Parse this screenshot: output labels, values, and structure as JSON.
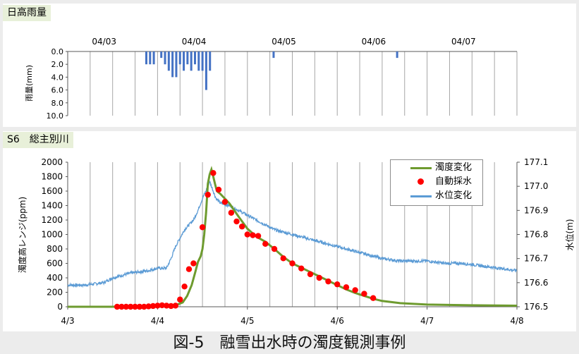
{
  "panels": {
    "top_label": "日高雨量",
    "bottom_label": "S6　総主別川"
  },
  "caption": "図-5　融雪出水時の濁度観測事例",
  "colors": {
    "rain": "#4472c4",
    "turbidity": "#6e9b2f",
    "sampling": "#ff0000",
    "water_level": "#5b9bd5",
    "grid": "#a6a6a6"
  },
  "chart_data": [
    {
      "type": "bar",
      "title": "",
      "ylabel": "雨量(mm)",
      "ylim": [
        0.0,
        10.0
      ],
      "y_inverted": true,
      "yticks": [
        "0.0",
        "2.0",
        "4.0",
        "6.0",
        "8.0",
        "10.0"
      ],
      "x_date_labels": [
        "04/03",
        "04/04",
        "04/05",
        "04/06",
        "04/07"
      ],
      "xlim": [
        3.0,
        8.0
      ],
      "grid": "vertical every 0.25 day",
      "series": [
        {
          "x": [
            3.875,
            3.9167,
            3.9583,
            4.0417,
            4.0833,
            4.125,
            4.1667,
            4.2083,
            4.25,
            4.2917,
            4.3333,
            4.375,
            4.4167,
            4.4583,
            4.5,
            4.5417,
            4.5833,
            5.2917,
            6.6667
          ],
          "values": [
            2.0,
            2.0,
            2.0,
            1.0,
            2.0,
            3.0,
            4.0,
            4.0,
            2.0,
            3.0,
            2.0,
            3.0,
            2.0,
            3.0,
            3.0,
            6.0,
            3.0,
            1.0,
            1.0
          ]
        }
      ]
    },
    {
      "type": "line",
      "title": "",
      "xlabel": "",
      "ylabel": "濁度高レンジ(ppm)",
      "ylabel_right": "水位(m)",
      "xlim": [
        3.0,
        8.0
      ],
      "xticks": [
        "4/3",
        "4/4",
        "4/5",
        "4/6",
        "4/7",
        "4/8"
      ],
      "ylim": [
        0,
        2000
      ],
      "yticks": [
        0,
        200,
        400,
        600,
        800,
        1000,
        1200,
        1400,
        1600,
        1800,
        2000
      ],
      "ylim_right": [
        176.5,
        177.1
      ],
      "yticks_right": [
        "176.5",
        "176.6",
        "176.7",
        "176.8",
        "176.9",
        "177.0",
        "177.1"
      ],
      "grid": "vertical every 0.25 day",
      "legend_position": "top-right",
      "series": [
        {
          "name": "濁度変化",
          "axis": "left",
          "x": [
            3.0,
            3.5,
            3.9,
            4.1,
            4.2,
            4.28,
            4.33,
            4.38,
            4.42,
            4.45,
            4.48,
            4.5,
            4.52,
            4.54,
            4.56,
            4.58,
            4.6,
            4.62,
            4.64,
            4.66,
            4.7,
            4.8,
            4.9,
            5.0,
            5.1,
            5.2,
            5.3,
            5.4,
            5.5,
            5.6,
            5.7,
            5.8,
            5.9,
            6.0,
            6.1,
            6.2,
            6.3,
            6.4,
            6.5,
            6.7,
            7.0,
            7.5,
            8.0
          ],
          "values": [
            0,
            0,
            2,
            10,
            20,
            60,
            150,
            300,
            480,
            620,
            700,
            800,
            1000,
            1300,
            1700,
            1830,
            1900,
            1800,
            1700,
            1600,
            1560,
            1430,
            1250,
            1080,
            970,
            900,
            800,
            690,
            600,
            540,
            480,
            420,
            360,
            300,
            240,
            190,
            150,
            110,
            80,
            50,
            30,
            20,
            15
          ]
        },
        {
          "name": "自動採水",
          "axis": "left",
          "x": [
            3.55,
            3.6,
            3.65,
            3.7,
            3.75,
            3.8,
            3.85,
            3.9,
            3.95,
            4.0,
            4.05,
            4.1,
            4.15,
            4.2,
            4.25,
            4.3,
            4.35,
            4.4,
            4.5,
            4.56,
            4.62,
            4.68,
            4.75,
            4.82,
            4.88,
            4.94,
            5.0,
            5.06,
            5.12,
            5.2,
            5.3,
            5.4,
            5.5,
            5.6,
            5.7,
            5.8,
            5.9,
            6.0,
            6.1,
            6.2,
            6.3,
            6.4
          ],
          "values": [
            0,
            0,
            0,
            0,
            0,
            0,
            0,
            5,
            10,
            15,
            20,
            15,
            10,
            15,
            100,
            280,
            520,
            600,
            1100,
            1550,
            1850,
            1620,
            1450,
            1300,
            1180,
            1110,
            1000,
            990,
            980,
            870,
            800,
            670,
            600,
            530,
            450,
            400,
            350,
            310,
            270,
            230,
            180,
            120
          ]
        },
        {
          "name": "水位変化",
          "axis": "right",
          "x": [
            3.0,
            3.2,
            3.4,
            3.5,
            3.7,
            3.9,
            4.0,
            4.1,
            4.15,
            4.2,
            4.3,
            4.4,
            4.45,
            4.5,
            4.55,
            4.58,
            4.6,
            4.62,
            4.65,
            4.7,
            4.8,
            4.9,
            5.0,
            5.1,
            5.2,
            5.3,
            5.5,
            5.7,
            5.9,
            6.1,
            6.3,
            6.5,
            6.7,
            7.0,
            7.2,
            7.4,
            7.6,
            7.8,
            8.0
          ],
          "values": [
            176.59,
            176.59,
            176.6,
            176.62,
            176.64,
            176.65,
            176.66,
            176.66,
            176.7,
            176.75,
            176.82,
            176.86,
            176.9,
            176.95,
            176.99,
            177.02,
            177.0,
            176.98,
            176.95,
            176.93,
            176.92,
            176.9,
            176.88,
            176.86,
            176.84,
            176.82,
            176.8,
            176.78,
            176.76,
            176.74,
            176.72,
            176.7,
            176.69,
            176.69,
            176.68,
            176.68,
            176.67,
            176.66,
            176.65
          ]
        }
      ]
    }
  ]
}
